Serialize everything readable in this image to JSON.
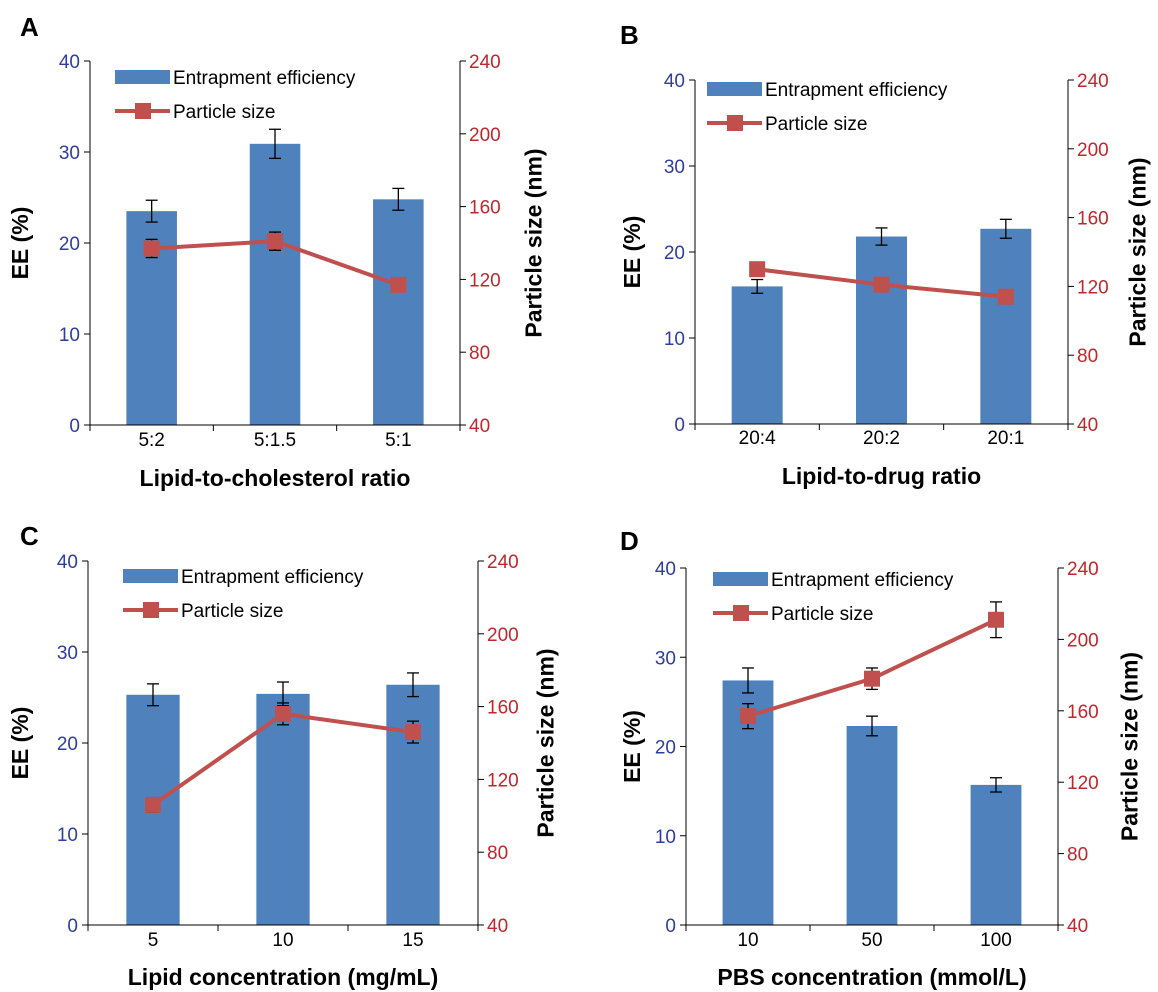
{
  "legend": {
    "bar_label": "Entrapment efficiency",
    "line_label": "Particle size"
  },
  "colors": {
    "bar": "#4F81BD",
    "line": "#C0504D",
    "left_axis_text": "#2E3D9E",
    "right_axis_text": "#C0272D"
  },
  "chart_data": [
    {
      "panel_label": "A",
      "type": "bar",
      "categories": [
        "5:2",
        "5:1.5",
        "5:1"
      ],
      "xlabel": "Lipid-to-cholesterol ratio",
      "ylabel": "EE (%)",
      "y2label": "Particle size (nm)",
      "ylim": [
        0,
        40
      ],
      "y2lim": [
        40,
        240
      ],
      "yticks": [
        "0",
        "10",
        "20",
        "30",
        "40"
      ],
      "y2ticks": [
        "40",
        "80",
        "120",
        "160",
        "200",
        "240"
      ],
      "series": [
        {
          "name": "Entrapment efficiency",
          "type": "bar",
          "axis": "left",
          "values": [
            23.5,
            30.9,
            24.8
          ],
          "errors": [
            1.2,
            1.6,
            1.2
          ]
        },
        {
          "name": "Particle size",
          "type": "line",
          "axis": "right",
          "values": [
            137,
            141,
            117
          ],
          "errors": [
            5,
            5,
            3
          ]
        }
      ]
    },
    {
      "panel_label": "B",
      "type": "bar",
      "categories": [
        "20:4",
        "20:2",
        "20:1"
      ],
      "xlabel": "Lipid-to-drug ratio",
      "ylabel": "EE (%)",
      "y2label": "Particle size (nm)",
      "ylim": [
        0,
        40
      ],
      "y2lim": [
        40,
        240
      ],
      "yticks": [
        "0",
        "10",
        "20",
        "30",
        "40"
      ],
      "y2ticks": [
        "40",
        "80",
        "120",
        "160",
        "200",
        "240"
      ],
      "series": [
        {
          "name": "Entrapment efficiency",
          "type": "bar",
          "axis": "left",
          "values": [
            16.0,
            21.8,
            22.7
          ],
          "errors": [
            0.8,
            1.0,
            1.1
          ]
        },
        {
          "name": "Particle size",
          "type": "line",
          "axis": "right",
          "values": [
            130,
            121,
            114
          ],
          "errors": [
            3,
            3,
            3
          ]
        }
      ]
    },
    {
      "panel_label": "C",
      "type": "bar",
      "categories": [
        "5",
        "10",
        "15"
      ],
      "xlabel": "Lipid concentration (mg/mL)",
      "ylabel": "EE (%)",
      "y2label": "Particle size (nm)",
      "ylim": [
        0,
        40
      ],
      "y2lim": [
        40,
        240
      ],
      "yticks": [
        "0",
        "10",
        "20",
        "30",
        "40"
      ],
      "y2ticks": [
        "40",
        "80",
        "120",
        "160",
        "200",
        "240"
      ],
      "series": [
        {
          "name": "Entrapment efficiency",
          "type": "bar",
          "axis": "left",
          "values": [
            25.3,
            25.4,
            26.4
          ],
          "errors": [
            1.2,
            1.3,
            1.3
          ]
        },
        {
          "name": "Particle size",
          "type": "line",
          "axis": "right",
          "values": [
            106,
            156,
            146
          ],
          "errors": [
            4,
            6,
            6
          ]
        }
      ]
    },
    {
      "panel_label": "D",
      "type": "bar",
      "categories": [
        "10",
        "50",
        "100"
      ],
      "xlabel": "PBS concentration (mmol/L)",
      "ylabel": "EE (%)",
      "y2label": "Particle size (nm)",
      "ylim": [
        0,
        40
      ],
      "y2lim": [
        40,
        240
      ],
      "yticks": [
        "0",
        "10",
        "20",
        "30",
        "40"
      ],
      "y2ticks": [
        "40",
        "80",
        "120",
        "160",
        "200",
        "240"
      ],
      "series": [
        {
          "name": "Entrapment efficiency",
          "type": "bar",
          "axis": "left",
          "values": [
            27.4,
            22.3,
            15.7
          ],
          "errors": [
            1.4,
            1.1,
            0.8
          ]
        },
        {
          "name": "Particle size",
          "type": "line",
          "axis": "right",
          "values": [
            157,
            178,
            211
          ],
          "errors": [
            7,
            6,
            10
          ]
        }
      ]
    }
  ]
}
